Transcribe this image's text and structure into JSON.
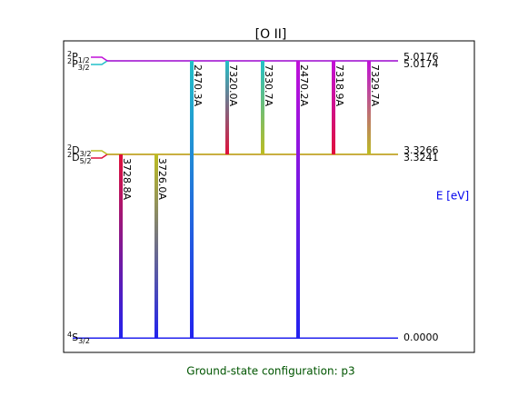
{
  "chart_data": {
    "type": "level-diagram",
    "title": "[O II]",
    "axis_label": "E [eV]",
    "footer": "Ground-state configuration: p3",
    "ylim": [
      -0.26,
      5.38
    ],
    "levels": [
      {
        "multiplicity": "4",
        "letter": "S",
        "j": "3/2",
        "energy": {
          "value": 0,
          "label": "0.0000"
        },
        "color": "#2222ee"
      },
      {
        "multiplicity": "2",
        "letter": "D",
        "j": "5/2",
        "energy": 3.3241,
        "color": "#e0103a"
      },
      {
        "multiplicity": "2",
        "letter": "D",
        "j": "3/2",
        "energy": 3.3266,
        "color": "#bcbc22"
      },
      {
        "multiplicity": "2",
        "letter": "P",
        "j": "3/2",
        "energy": 5.0174,
        "color": "#22c0c8"
      },
      {
        "multiplicity": "2",
        "letter": "P",
        "j": "1/2",
        "energy": 5.0176,
        "color": "#c010d8"
      }
    ],
    "transitions": [
      {
        "label": "3728.8A",
        "upper": 1,
        "lower": 0
      },
      {
        "label": "3726.0A",
        "upper": 2,
        "lower": 0
      },
      {
        "label": "2470.3A",
        "upper": 3,
        "lower": 0
      },
      {
        "label": "7320.0A",
        "upper": 3,
        "lower": 1
      },
      {
        "label": "7330.7A",
        "upper": 3,
        "lower": 2
      },
      {
        "label": "2470.2A",
        "upper": 4,
        "lower": 0
      },
      {
        "label": "7318.9A",
        "upper": 4,
        "lower": 1
      },
      {
        "label": "7329.7A",
        "upper": 4,
        "lower": 2
      }
    ]
  }
}
